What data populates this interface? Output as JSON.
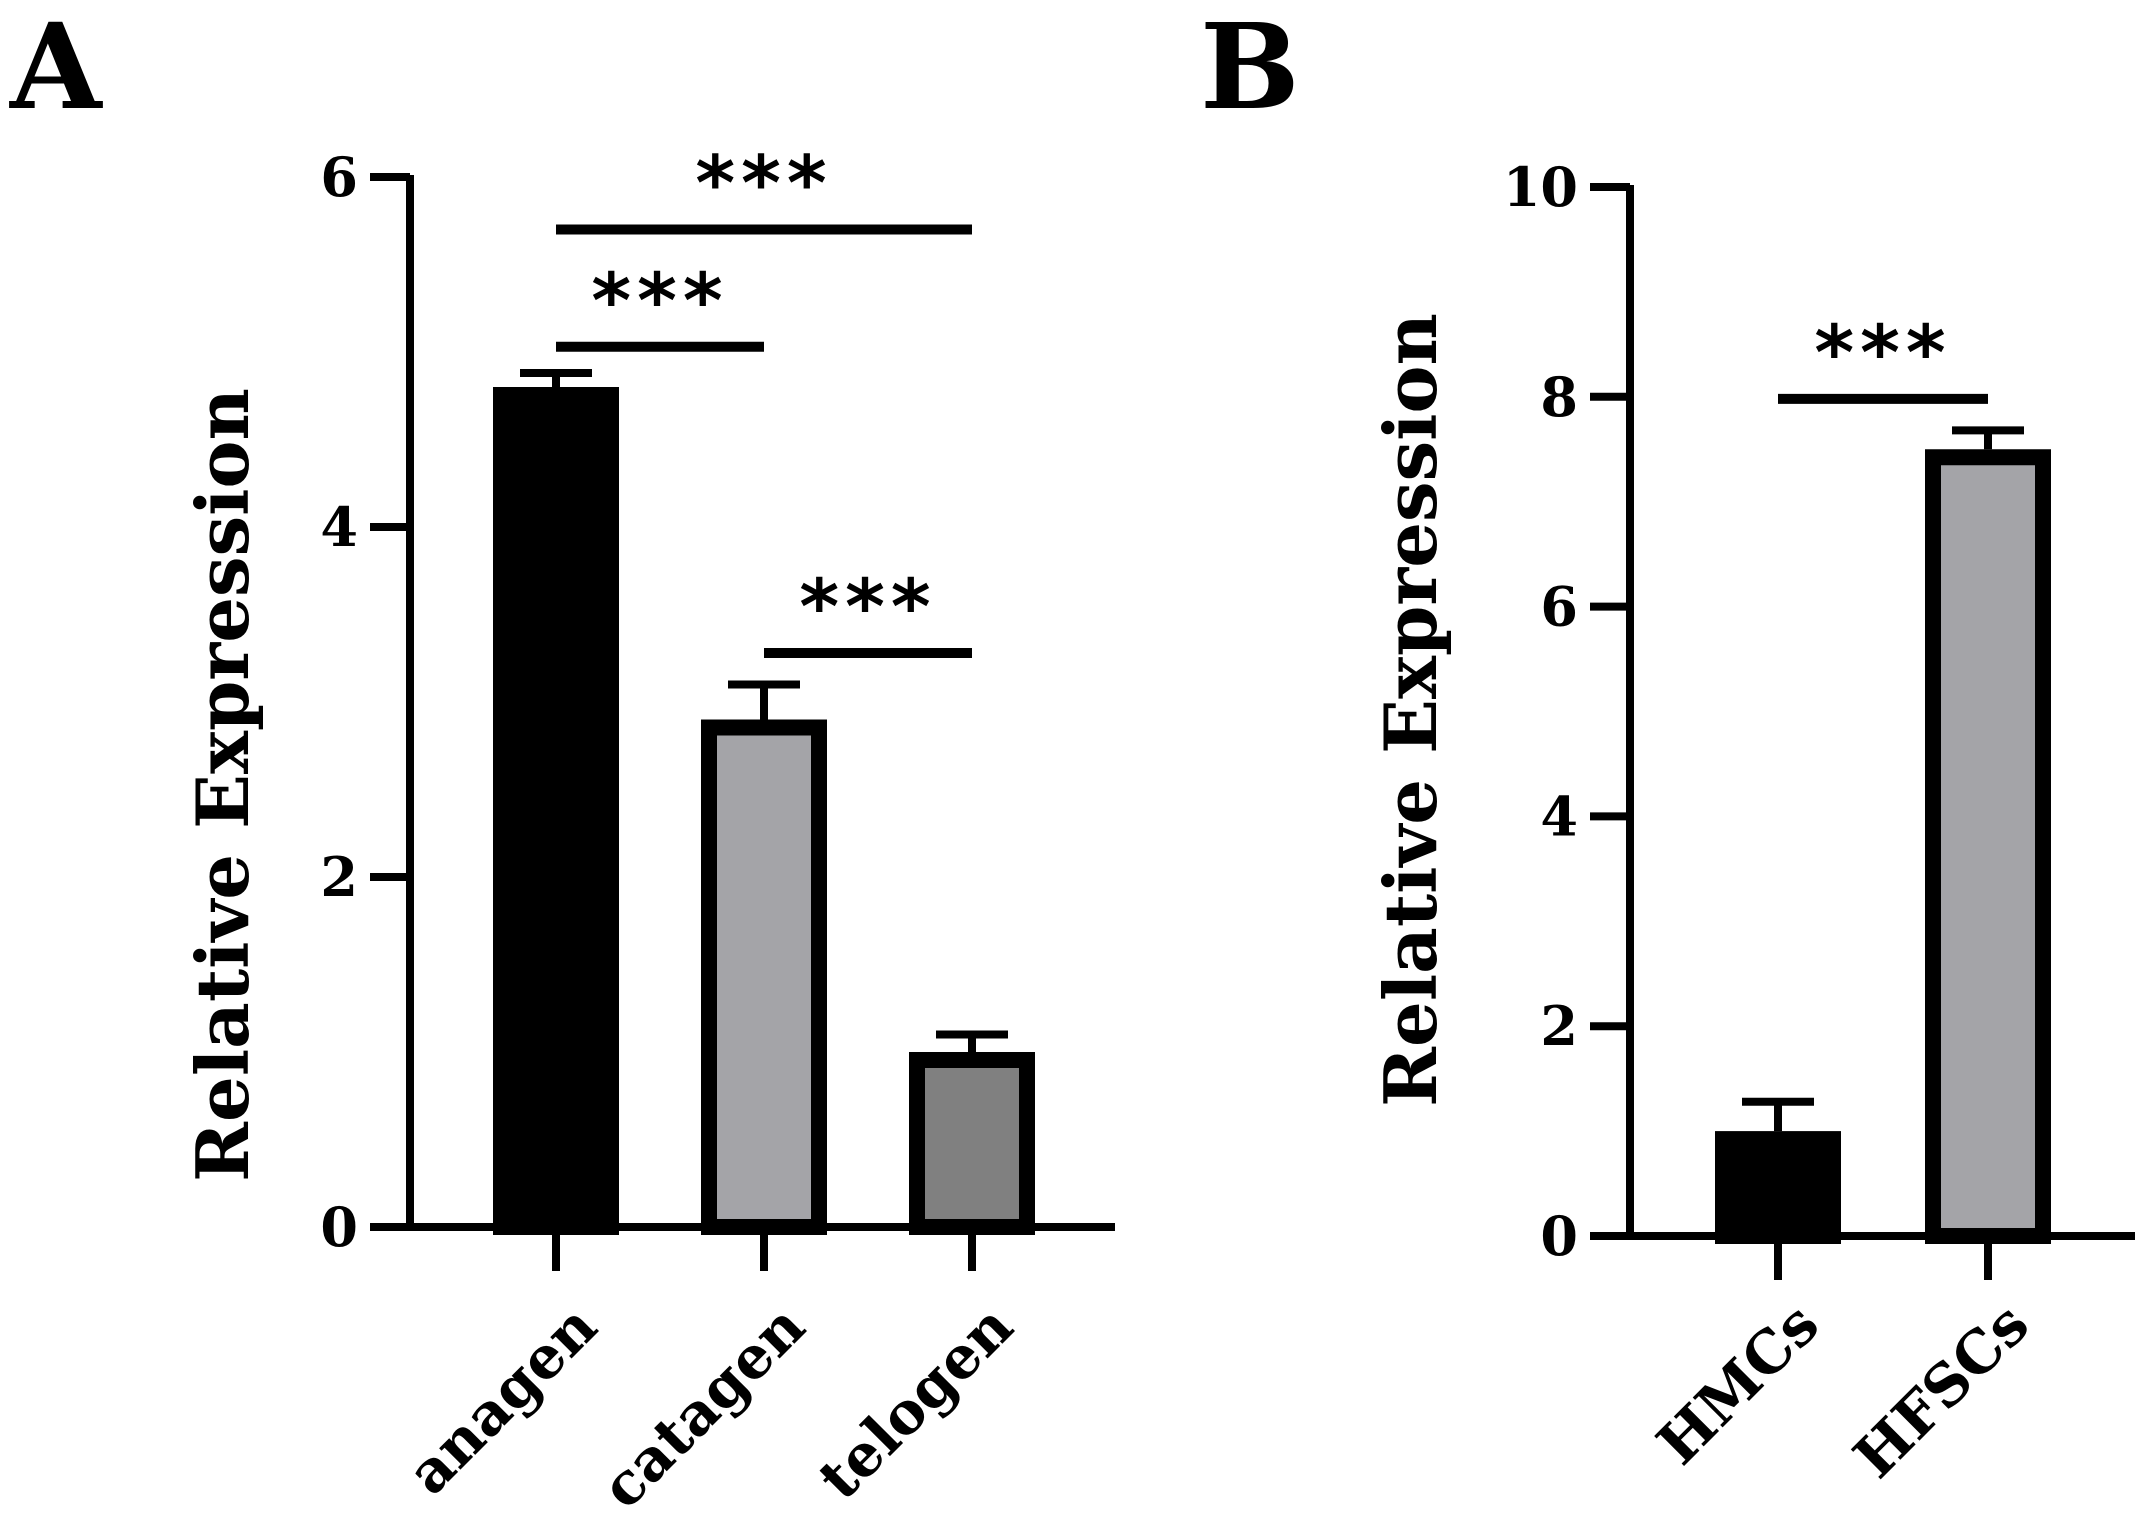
{
  "colors": {
    "axis": "#000000",
    "anagen": "#000000",
    "catagen": "#a4a4a8",
    "telogen": "#808080",
    "HMCs": "#000000",
    "HFSCs": "#a4a4a8"
  },
  "chart_data": [
    {
      "panel": "A",
      "type": "bar",
      "title": "",
      "xlabel": "",
      "ylabel": "Relative Expression",
      "ylim": [
        0,
        6
      ],
      "yticks": [
        "0",
        "2",
        "4",
        "6"
      ],
      "categories": [
        "anagen",
        "catagen",
        "telogen"
      ],
      "values": [
        4.8,
        2.9,
        1.0
      ],
      "error": [
        0.08,
        0.2,
        0.1
      ],
      "significance": [
        {
          "from": "anagen",
          "to": "telogen",
          "label": "***",
          "y": 5.7
        },
        {
          "from": "anagen",
          "to": "catagen",
          "label": "***",
          "y": 5.03
        },
        {
          "from": "catagen",
          "to": "telogen",
          "label": "***",
          "y": 3.28
        }
      ]
    },
    {
      "panel": "B",
      "type": "bar",
      "title": "",
      "xlabel": "",
      "ylabel": "Relative Expression",
      "ylim": [
        0,
        10
      ],
      "yticks": [
        "0",
        "2",
        "4",
        "6",
        "8",
        "10"
      ],
      "categories": [
        "HMCs",
        "HFSCs"
      ],
      "values": [
        1.0,
        7.5
      ],
      "error": [
        0.28,
        0.18
      ],
      "significance": [
        {
          "from": "HMCs",
          "to": "HFSCs",
          "label": "***",
          "y": 7.98
        }
      ]
    }
  ]
}
